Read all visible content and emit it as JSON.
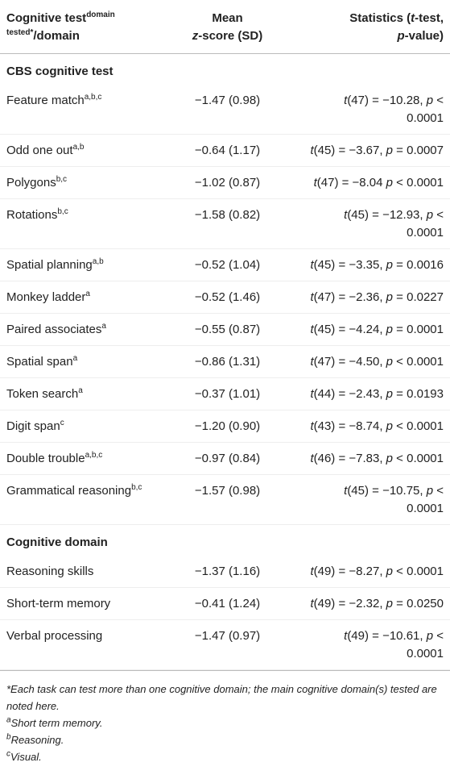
{
  "table": {
    "header": {
      "col1": {
        "text": "Cognitive test",
        "sup": "domain tested*",
        "tail": "/domain"
      },
      "col2": {
        "line1": "Mean",
        "italic": "z",
        "tail": "-score (SD)"
      },
      "col3": [
        "Statistics (",
        "t",
        "-test, ",
        "p",
        "-value)"
      ]
    },
    "sections": [
      {
        "title": "CBS cognitive test",
        "rows": [
          {
            "test": "Feature match",
            "sup": "a,b,c",
            "mean": "−1.47 (0.98)",
            "stat": [
              "t",
              "(47) = −10.28, ",
              "p",
              " < 0.0001"
            ]
          },
          {
            "test": "Odd one out",
            "sup": "a,b",
            "mean": "−0.64 (1.17)",
            "stat": [
              "t",
              "(45) = −3.67, ",
              "p",
              " = 0.0007"
            ]
          },
          {
            "test": "Polygons",
            "sup": "b,c",
            "mean": "−1.02 (0.87)",
            "stat": [
              "t",
              "(47) = −8.04 ",
              "p",
              " < 0.0001"
            ]
          },
          {
            "test": "Rotations",
            "sup": "b,c",
            "mean": "−1.58 (0.82)",
            "stat": [
              "t",
              "(45) = −12.93, ",
              "p",
              " < 0.0001"
            ]
          },
          {
            "test": "Spatial planning",
            "sup": "a,b",
            "mean": "−0.52 (1.04)",
            "stat": [
              "t",
              "(45) = −3.35, ",
              "p",
              " = 0.0016"
            ]
          },
          {
            "test": "Monkey ladder",
            "sup": "a",
            "mean": "−0.52 (1.46)",
            "stat": [
              "t",
              "(47) = −2.36, ",
              "p",
              " = 0.0227"
            ]
          },
          {
            "test": "Paired associates",
            "sup": "a",
            "mean": "−0.55 (0.87)",
            "stat": [
              "t",
              "(45) = −4.24, ",
              "p",
              " = 0.0001"
            ]
          },
          {
            "test": "Spatial span",
            "sup": "a",
            "mean": "−0.86 (1.31)",
            "stat": [
              "t",
              "(47) = −4.50, ",
              "p",
              " < 0.0001"
            ]
          },
          {
            "test": "Token search",
            "sup": "a",
            "mean": "−0.37 (1.01)",
            "stat": [
              "t",
              "(44) = −2.43, ",
              "p",
              " = 0.0193"
            ]
          },
          {
            "test": "Digit span",
            "sup": "c",
            "mean": "−1.20 (0.90)",
            "stat": [
              "t",
              "(43) = −8.74, ",
              "p",
              " < 0.0001"
            ]
          },
          {
            "test": "Double trouble",
            "sup": "a,b,c",
            "mean": "−0.97 (0.84)",
            "stat": [
              "t",
              "(46) = −7.83, ",
              "p",
              " < 0.0001"
            ]
          },
          {
            "test": "Grammatical reasoning",
            "sup": "b,c",
            "mean": "−1.57 (0.98)",
            "stat": [
              "t",
              "(45) = −10.75, ",
              "p",
              " < 0.0001"
            ]
          }
        ]
      },
      {
        "title": "Cognitive domain",
        "rows": [
          {
            "test": "Reasoning skills",
            "sup": null,
            "mean": "−1.37 (1.16)",
            "stat": [
              "t",
              "(49) = −8.27, ",
              "p",
              " < 0.0001"
            ]
          },
          {
            "test": "Short-term memory",
            "sup": null,
            "mean": "−0.41 (1.24)",
            "stat": [
              "t",
              "(49) = −2.32, ",
              "p",
              " = 0.0250"
            ]
          },
          {
            "test": "Verbal processing",
            "sup": null,
            "mean": "−1.47 (0.97)",
            "stat": [
              "t",
              "(49) = −10.61, ",
              "p",
              " < 0.0001"
            ]
          }
        ]
      }
    ]
  },
  "footnotes": {
    "main": "*Each task can test more than one cognitive domain; the main cognitive domain(s) tested are noted here.",
    "notes": [
      {
        "mark": "a",
        "text": "Short term memory."
      },
      {
        "mark": "b",
        "text": "Reasoning."
      },
      {
        "mark": "c",
        "text": "Visual."
      }
    ]
  }
}
